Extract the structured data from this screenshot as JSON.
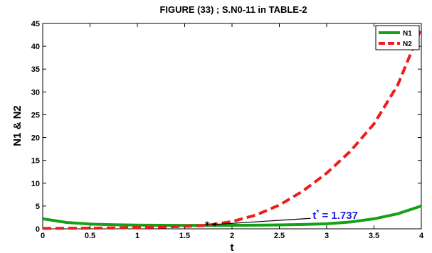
{
  "chart_data": {
    "type": "line",
    "title": "FIGURE (33) ; S.N0-11 in TABLE-2",
    "xlabel": "t",
    "ylabel": "N1 & N2",
    "xlim": [
      0,
      4
    ],
    "ylim": [
      0,
      45
    ],
    "xticks": [
      "0",
      "0.5",
      "1",
      "1.5",
      "2",
      "2.5",
      "3",
      "3.5",
      "4"
    ],
    "yticks": [
      "0",
      "5",
      "10",
      "15",
      "20",
      "25",
      "30",
      "35",
      "40",
      "45"
    ],
    "grid": false,
    "legend_position": "top-right",
    "series": [
      {
        "name": "N1",
        "color": "#16a016",
        "style": "solid",
        "x": [
          0,
          0.25,
          0.5,
          0.75,
          1,
          1.25,
          1.5,
          1.737,
          2,
          2.25,
          2.5,
          2.75,
          3,
          3.25,
          3.5,
          3.75,
          4
        ],
        "y": [
          2.2,
          1.4,
          1.05,
          0.9,
          0.82,
          0.78,
          0.76,
          0.76,
          0.78,
          0.8,
          0.85,
          0.95,
          1.1,
          1.5,
          2.2,
          3.3,
          5.0
        ]
      },
      {
        "name": "N2",
        "color": "#ee1c1c",
        "style": "dashed",
        "x": [
          0,
          0.25,
          0.5,
          0.75,
          1,
          1.25,
          1.5,
          1.737,
          2,
          2.25,
          2.5,
          2.75,
          3,
          3.25,
          3.5,
          3.75,
          4
        ],
        "y": [
          0.1,
          0.12,
          0.15,
          0.2,
          0.28,
          0.38,
          0.55,
          0.76,
          1.6,
          3.0,
          5.2,
          8.3,
          12.2,
          17.0,
          23.0,
          31.5,
          44.0
        ]
      }
    ],
    "annotations": [
      {
        "prefix": "t",
        "sup": "*",
        "text": " = 1.737",
        "x": 1.737,
        "y": 0.76,
        "marker": "*",
        "arrow_from": [
          2.83,
          2.3
        ]
      }
    ]
  }
}
